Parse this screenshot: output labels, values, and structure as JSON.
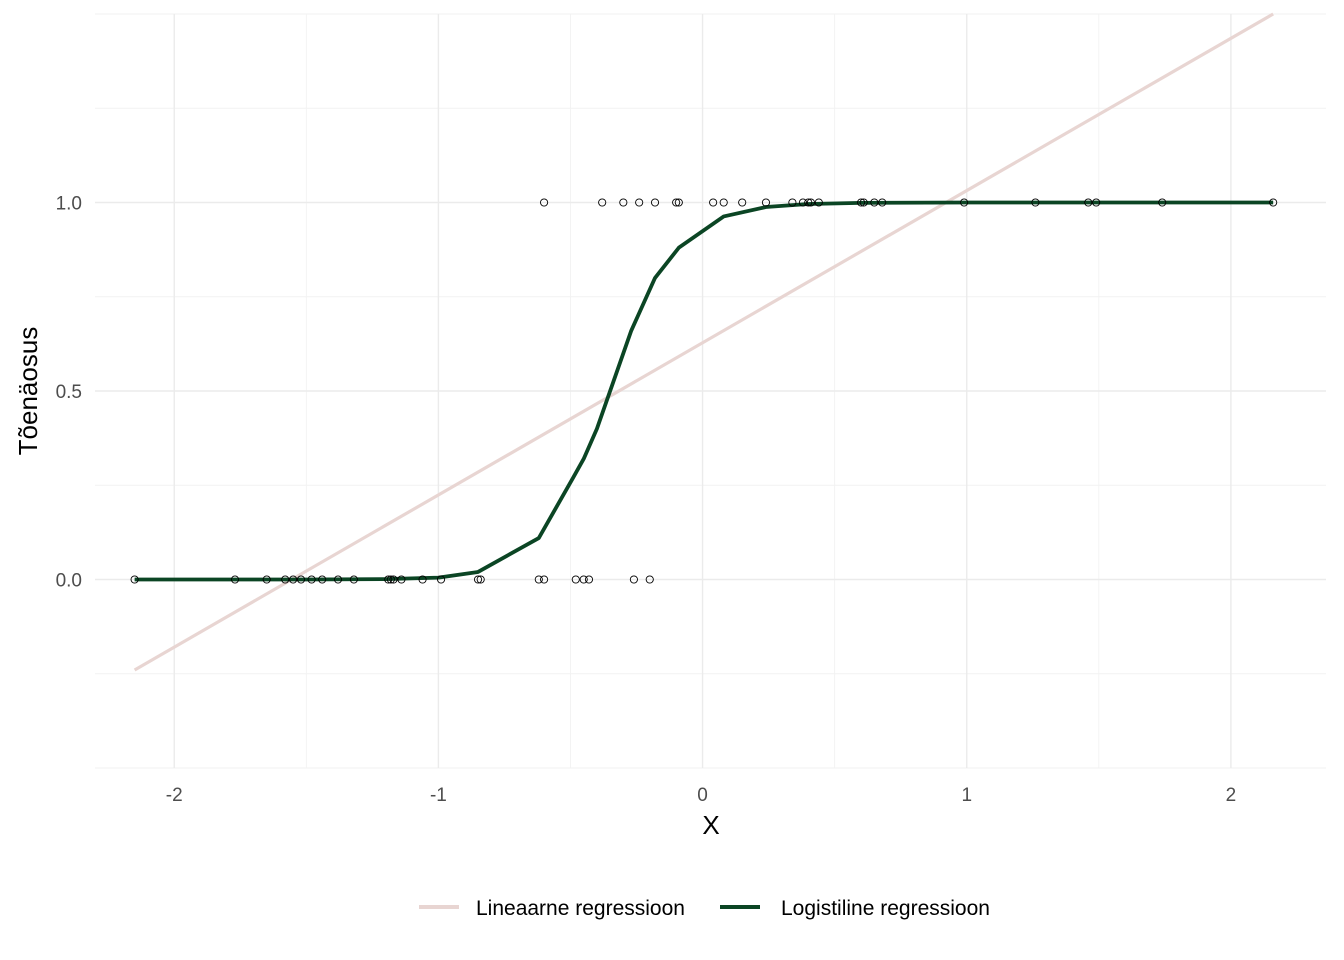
{
  "chart_data": {
    "type": "scatter",
    "xlabel": "X",
    "ylabel": "Tõenäosus",
    "xlim": [
      -2.3,
      2.36
    ],
    "ylim": [
      -0.5,
      1.5
    ],
    "x_ticks": [
      -2,
      -1,
      0,
      1,
      2
    ],
    "x_tick_labels": [
      "-2",
      "-1",
      "0",
      "1",
      "2"
    ],
    "y_ticks": [
      0,
      0.5,
      1
    ],
    "y_tick_labels": [
      "0.0",
      "0.5",
      "1.0"
    ],
    "grid": true,
    "legend_position": "bottom",
    "points": {
      "x0": [
        -2.15,
        -1.77,
        -1.65,
        -1.58,
        -1.55,
        -1.52,
        -1.48,
        -1.44,
        -1.38,
        -1.32,
        -1.19,
        -1.18,
        -1.17,
        -1.14,
        -1.06,
        -0.99,
        -0.85,
        -0.84,
        -0.62,
        -0.6,
        -0.48,
        -0.45,
        -0.43,
        -0.26,
        -0.2
      ],
      "x1": [
        -0.6,
        -0.38,
        -0.3,
        -0.24,
        -0.18,
        -0.1,
        -0.09,
        0.04,
        0.08,
        0.15,
        0.24,
        0.34,
        0.38,
        0.4,
        0.41,
        0.44,
        0.6,
        0.61,
        0.65,
        0.68,
        0.99,
        1.26,
        1.46,
        1.49,
        1.74,
        2.16
      ]
    },
    "series": [
      {
        "name": "Lineaarne regressioon",
        "color": "#e8d5d2",
        "x": [
          -2.15,
          2.16
        ],
        "y": [
          -0.24,
          1.5
        ]
      },
      {
        "name": "Logistiline regressioon",
        "color": "#0b4524",
        "x": [
          -2.15,
          -1.77,
          -1.5,
          -1.2,
          -1.0,
          -0.85,
          -0.62,
          -0.49,
          -0.45,
          -0.4,
          -0.35,
          -0.27,
          -0.18,
          -0.09,
          0.08,
          0.24,
          0.4,
          0.6,
          1.0,
          1.5,
          2.16
        ],
        "y": [
          0.0,
          0.0,
          0.0,
          0.001,
          0.005,
          0.02,
          0.11,
          0.27,
          0.32,
          0.4,
          0.5,
          0.66,
          0.8,
          0.88,
          0.963,
          0.988,
          0.996,
          0.999,
          1.0,
          1.0,
          1.0
        ]
      }
    ]
  }
}
